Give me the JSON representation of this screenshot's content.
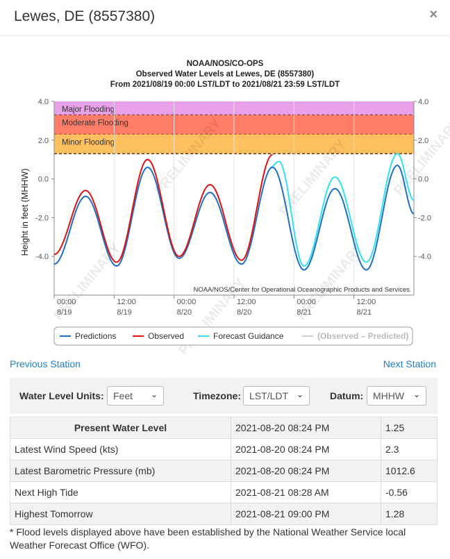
{
  "header": {
    "title": "Lewes, DE (8557380)",
    "close_label": "×"
  },
  "chart_data": {
    "type": "line",
    "title_lines": [
      "NOAA/NOS/CO-OPS",
      "Observed Water Levels at Lewes, DE (8557380)",
      "From 2021/08/19 00:00 LST/LDT to 2021/08/21 23:59 LST/LDT"
    ],
    "ylabel": "Height in feet (MHHW)",
    "ylim": [
      -6.0,
      4.0
    ],
    "y_ticks": [
      "4.0",
      "2.0",
      "0.0",
      "-2.0",
      "-4.0"
    ],
    "y_tick_values": [
      4,
      2,
      0,
      -2,
      -4
    ],
    "x_ticks": [
      {
        "time": "00:00",
        "date": "8/19",
        "hour": 0
      },
      {
        "time": "12:00",
        "date": "8/19",
        "hour": 12
      },
      {
        "time": "00:00",
        "date": "8/20",
        "hour": 24
      },
      {
        "time": "12:00",
        "date": "8/20",
        "hour": 36
      },
      {
        "time": "00:00",
        "date": "8/21",
        "hour": 48
      },
      {
        "time": "12:00",
        "date": "8/21",
        "hour": 60
      }
    ],
    "xlim_hours": [
      0,
      72
    ],
    "flood_bands": [
      {
        "label": "Major Flooding",
        "from": 3.3,
        "to": 4.0,
        "color": "#e8a0e8"
      },
      {
        "label": "Moderate Flooding",
        "from": 2.3,
        "to": 3.3,
        "color": "#ff7d66"
      },
      {
        "label": "Minor Flooding",
        "from": 1.3,
        "to": 2.3,
        "color": "#ffc060"
      }
    ],
    "watermark": "PRELIMINARY",
    "credit": "NOAA/NOS/Center for Operational Oceanographic Products and Services",
    "legend": [
      {
        "label": "Predictions",
        "color": "#1e6fc4"
      },
      {
        "label": "Observed",
        "color": "#dd1111"
      },
      {
        "label": "Forecast Guidance",
        "color": "#33e0f0"
      },
      {
        "label": "(Observed – Predicted)",
        "color": "#cccccc"
      }
    ],
    "series": [
      {
        "name": "Predictions",
        "color": "#1e6fc4",
        "hours": [
          0,
          6.3,
          12.5,
          18.7,
          25.0,
          31.2,
          37.5,
          43.7,
          50.0,
          56.2,
          62.5,
          68.7,
          72
        ],
        "values": [
          -4.4,
          -0.9,
          -4.5,
          0.6,
          -4.1,
          -0.7,
          -4.4,
          0.6,
          -4.7,
          -0.5,
          -4.7,
          0.7,
          -1.8
        ]
      },
      {
        "name": "Observed",
        "color": "#dd1111",
        "hours": [
          0,
          6.3,
          12.5,
          18.7,
          25.0,
          31.2,
          37.5,
          43.7
        ],
        "values": [
          -3.9,
          -0.6,
          -4.3,
          1.0,
          -4.0,
          -0.3,
          -4.2,
          1.25
        ]
      },
      {
        "name": "Forecast Guidance",
        "color": "#33e0f0",
        "hours": [
          43.3,
          45.0,
          50.0,
          56.2,
          62.5,
          68.7,
          72
        ],
        "values": [
          0.6,
          0.9,
          -4.5,
          0.1,
          -4.3,
          1.3,
          -1.1
        ]
      }
    ]
  },
  "nav": {
    "previous": "Previous Station",
    "next": "Next Station"
  },
  "controls": {
    "units_label": "Water Level Units:",
    "units_value": "Feet",
    "timezone_label": "Timezone:",
    "timezone_value": "LST/LDT",
    "datum_label": "Datum:",
    "datum_value": "MHHW",
    "arrow": "⌄"
  },
  "table": {
    "rows": [
      {
        "label": "Present Water Level",
        "time": "2021-08-20 08:24 PM",
        "value": "1.25"
      },
      {
        "label": "Latest Wind Speed (kts)",
        "time": "2021-08-20 08:24 PM",
        "value": "2.3"
      },
      {
        "label": "Latest Barometric Pressure (mb)",
        "time": "2021-08-20 08:24 PM",
        "value": "1012.6"
      },
      {
        "label": "Next High Tide",
        "time": "2021-08-21 08:28 AM",
        "value": "-0.56"
      },
      {
        "label": "Highest Tomorrow",
        "time": "2021-08-21 09:00 PM",
        "value": "1.28"
      }
    ]
  },
  "footnote": "* Flood levels displayed above have been established by the National Weather Service local Weather Forecast Office (WFO)."
}
